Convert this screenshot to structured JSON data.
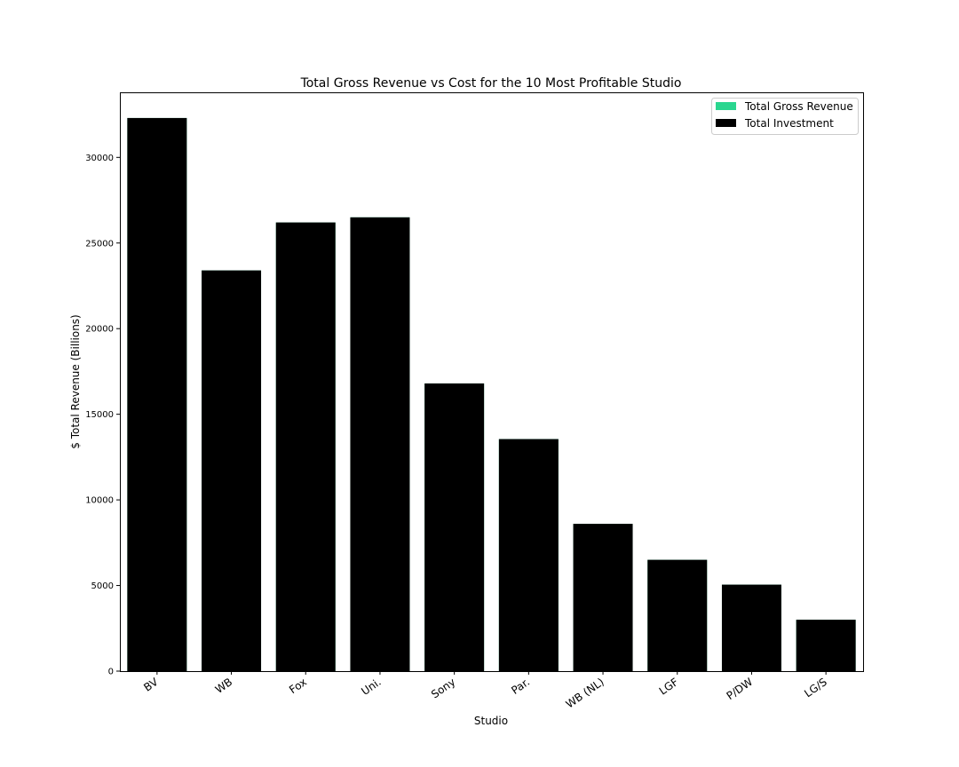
{
  "chart_data": {
    "type": "bar",
    "title": "Total Gross Revenue vs Cost for the 10 Most Profitable Studio",
    "xlabel": "Studio",
    "ylabel": "$ Total Revenue (Billions)",
    "categories": [
      "BV",
      "WB",
      "Fox",
      "Uni.",
      "Sony",
      "Par.",
      "WB (NL)",
      "LGF",
      "P/DW",
      "LG/S"
    ],
    "series": [
      {
        "name": "Total Gross Revenue",
        "color": "#2ad68f",
        "values": [
          32300,
          23400,
          26200,
          26500,
          16800,
          13550,
          8600,
          6500,
          5050,
          3000
        ]
      },
      {
        "name": "Total Investment",
        "color": "#000000",
        "values": [
          32300,
          23400,
          26200,
          26500,
          16800,
          13550,
          8600,
          6500,
          5050,
          3000
        ]
      }
    ],
    "ylim": [
      0,
      33800
    ],
    "yticks": [
      0,
      5000,
      10000,
      15000,
      20000,
      25000,
      30000
    ],
    "grid": false,
    "legend_position": "top-right"
  }
}
